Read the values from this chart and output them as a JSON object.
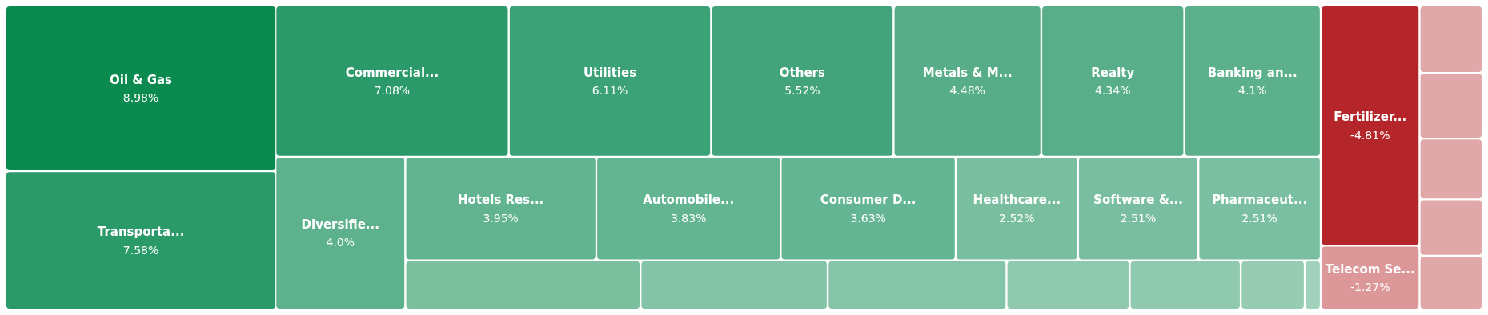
{
  "chart_data": {
    "type": "other",
    "categories": [
      "Oil & Gas",
      "Transporta...",
      "Commercial...",
      "Utilities",
      "Others",
      "Metals & M...",
      "Realty",
      "Banking an...",
      "Diversifie...",
      "Hotels Res...",
      "Automobile...",
      "Consumer D...",
      "Healthcare...",
      "Software &...",
      "Pharmaceut...",
      null,
      null,
      null,
      null,
      null,
      null,
      null,
      "Fertilizer...",
      "Telecom Se...",
      null,
      null,
      null,
      null,
      null
    ],
    "values": [
      8.98,
      7.58,
      7.08,
      6.11,
      5.52,
      4.48,
      4.34,
      4.1,
      4.0,
      3.95,
      3.83,
      3.63,
      2.52,
      2.51,
      2.51,
      null,
      null,
      null,
      null,
      null,
      null,
      null,
      -4.81,
      -1.27,
      null,
      null,
      null,
      null,
      null
    ],
    "value_labels": [
      "8.98%",
      "7.58%",
      "7.08%",
      "6.11%",
      "5.52%",
      "4.48%",
      "4.34%",
      "4.1%",
      "4.0%",
      "3.95%",
      "3.83%",
      "3.63%",
      "2.52%",
      "2.51%",
      "2.51%",
      null,
      null,
      null,
      null,
      null,
      null,
      null,
      "-4.81%",
      "-1.27%",
      null,
      null,
      null,
      null,
      null
    ],
    "colors": [
      "#0a8a4e",
      "#2a9a68",
      "#2b996a",
      "#3ba177",
      "#43a47b",
      "#56ad87",
      "#57ae88",
      "#5cb18c",
      "#5db18d",
      "#62b491",
      "#63b592",
      "#64b593",
      "#78be9f",
      "#79bea0",
      "#7abfa1",
      "#7bbf9f",
      "#83c3a7",
      "#84c4a8",
      "#8ec8ae",
      "#8fc9af",
      "#97ccb3",
      "#a0d1bb",
      "#b5262a",
      "#dc9898",
      "#e0a8a8",
      "#e0a8a8",
      "#e0a8a8",
      "#e0a8a8",
      "#e0a8a8"
    ]
  }
}
